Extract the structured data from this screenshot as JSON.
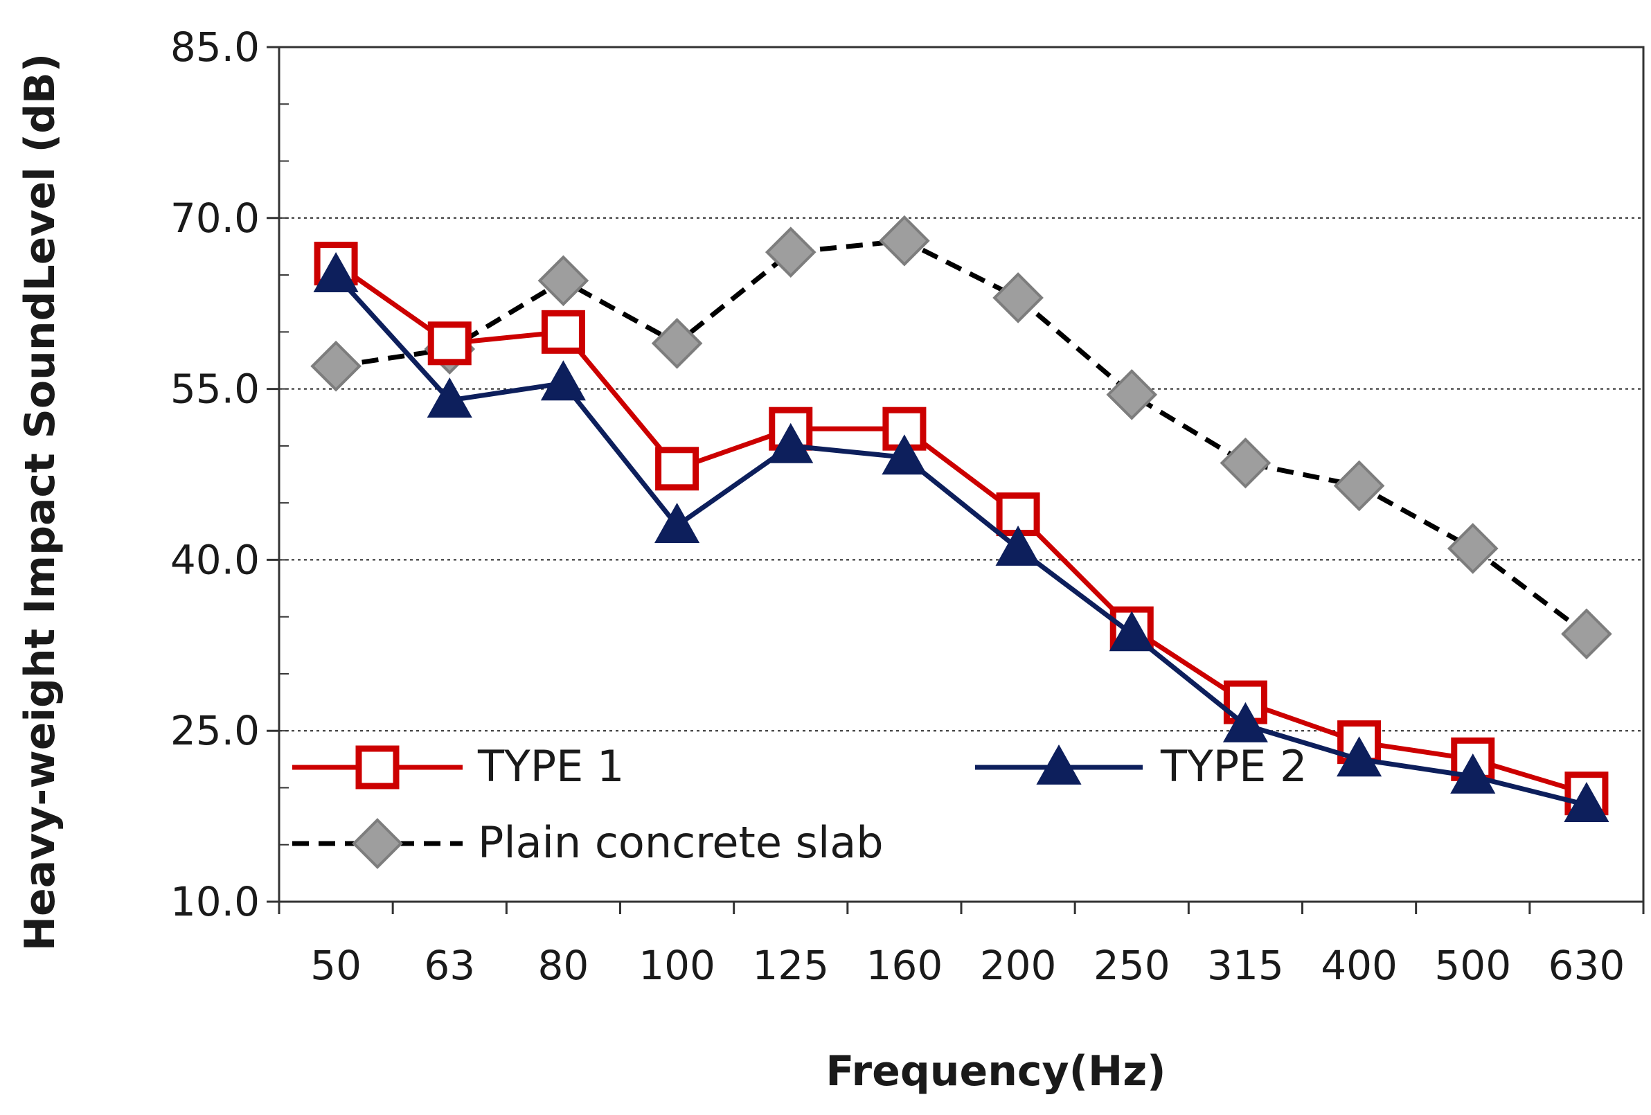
{
  "chart_data": {
    "type": "line",
    "categories": [
      "50",
      "63",
      "80",
      "100",
      "125",
      "160",
      "200",
      "250",
      "315",
      "400",
      "500",
      "630"
    ],
    "xlabel": "Frequency(Hz)",
    "ylabel": "Heavy-weight Impact SoundLevel (dB)",
    "ylim": [
      10,
      85
    ],
    "y_ticks": [
      "85.0",
      "70.0",
      "55.0",
      "40.0",
      "25.0",
      "10.0"
    ],
    "grid": "horizontal dotted at 25, 40, 55, 70",
    "legend_placement": "bottom-left inside plot",
    "series": [
      {
        "name": "TYPE 1",
        "color": "#cc0000",
        "marker": "open-square",
        "values": [
          66.0,
          59.0,
          60.0,
          48.0,
          51.5,
          51.5,
          44.0,
          34.0,
          27.5,
          24.0,
          22.5,
          19.5
        ]
      },
      {
        "name": "TYPE 2",
        "color": "#0d1f5c",
        "marker": "filled-triangle",
        "values": [
          65.0,
          54.0,
          55.5,
          43.0,
          50.0,
          49.0,
          41.0,
          33.5,
          25.5,
          22.5,
          21.0,
          18.5
        ]
      },
      {
        "name": "Plain concrete slab",
        "color": "#000000",
        "marker": "gray-diamond",
        "values": [
          57.0,
          58.5,
          64.5,
          59.0,
          67.0,
          68.0,
          63.0,
          54.5,
          48.5,
          46.5,
          41.0,
          33.5
        ]
      }
    ]
  }
}
